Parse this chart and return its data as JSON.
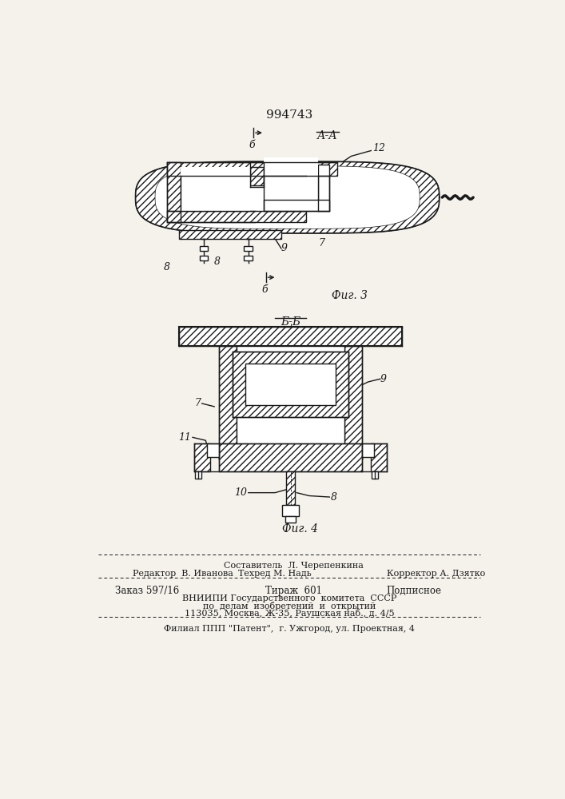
{
  "patent_number": "994743",
  "fig3_label": "А-А",
  "fig3_caption": "Фиг. 3",
  "fig4_section": "Б-Б",
  "fig4_caption": "Фиг. 4",
  "bg_color": "#f5f2ec",
  "line_color": "#1a1a1a",
  "footer_line1_left": "Редактор  В. Иванова",
  "footer_line1_center": "Составитель  Л. Черепенкина",
  "footer_line2_center": "Техред М. Надь",
  "footer_line2_right": "Корректор А. Дзятко",
  "footer_order": "Заказ 597/16",
  "footer_tirazh": "Тираж  601",
  "footer_podp": "Подписное",
  "footer_vnipi1": "ВНИИПИ Государственного  комитета  СССР",
  "footer_vnipi2": "по  делам  изобретений  и  открытий",
  "footer_vnipi3": "113035, Москва, Ж-35, Раушская наб., д. 4/5",
  "footer_filial": "Филиал ППП \"Патент\",  г. Ужгород, ул. Проектная, 4"
}
